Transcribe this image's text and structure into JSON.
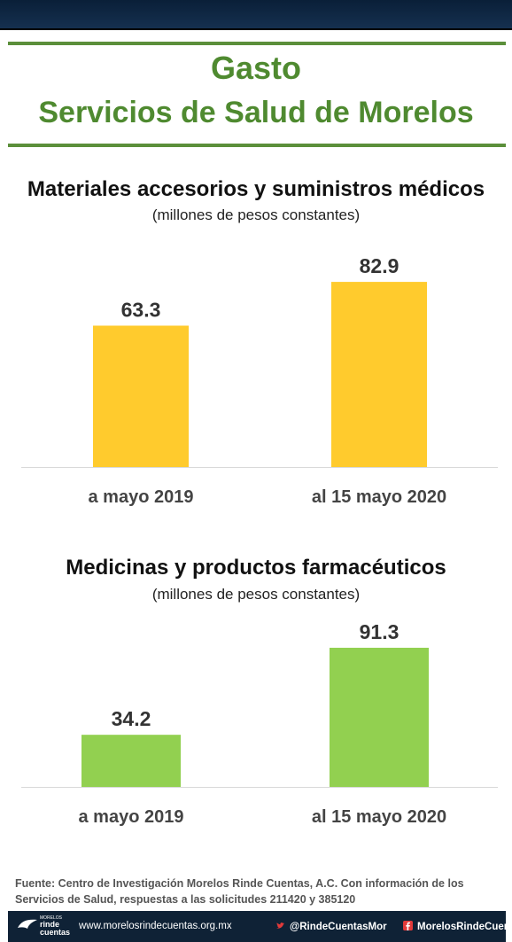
{
  "header": {
    "title_line1": "Gasto",
    "title_line2": "Servicios de Salud de Morelos"
  },
  "chart_data": [
    {
      "type": "bar",
      "title": "Materiales  accesorios y suministros médicos",
      "subtitle": "(millones de pesos constantes)",
      "categories": [
        "a mayo 2019",
        "al 15 mayo 2020"
      ],
      "values": [
        63.3,
        82.9
      ],
      "value_labels": [
        "63.3",
        "82.9"
      ],
      "color": "#ffcb2d",
      "ylim": [
        0,
        100
      ],
      "grid": false,
      "legend": "none"
    },
    {
      "type": "bar",
      "title": "Medicinas y productos farmacéuticos",
      "subtitle": "(millones de pesos constantes)",
      "categories": [
        "a mayo 2019",
        "al 15 mayo 2020"
      ],
      "values": [
        34.2,
        91.3
      ],
      "value_labels": [
        "34.2",
        "91.3"
      ],
      "color": "#92d050",
      "ylim": [
        0,
        100
      ],
      "grid": false,
      "legend": "none"
    }
  ],
  "source": {
    "text": "Fuente: Centro de Investigación Morelos Rinde Cuentas, A.C. Con información de los Servicios de Salud, respuestas a las solicitudes 211420 y 385120"
  },
  "footer": {
    "logo_line1": "MORELOS",
    "logo_line2": "rinde",
    "logo_line3": "cuentas",
    "website": "www.morelosrindecuentas.org.mx",
    "twitter": "@RindeCuentasMor",
    "facebook": "MorelosRindeCuent",
    "twitter_icon": "twitter-icon",
    "facebook_icon": "facebook-icon"
  }
}
